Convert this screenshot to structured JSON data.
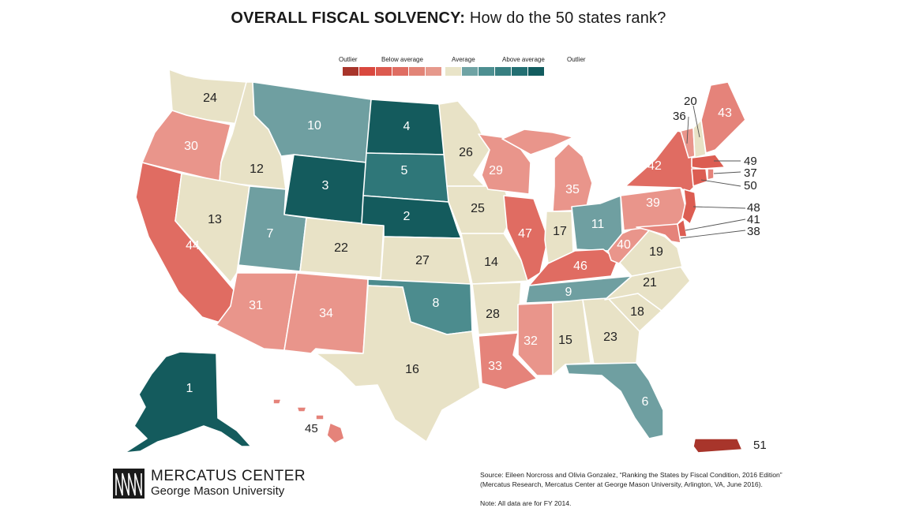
{
  "title": {
    "bold": "OVERALL FISCAL SOLVENCY:",
    "rest": "How do the 50 states rank?"
  },
  "legend": {
    "labels": [
      "Outlier",
      "Below average",
      "Average",
      "Above average",
      "Outlier"
    ],
    "colors": [
      "#a8352b",
      "#d9483f",
      "#dc5a4f",
      "#df6d62",
      "#e28477",
      "#e6998c",
      "#e9e4c8",
      "#6fa3a4",
      "#4d8f91",
      "#377f81",
      "#236f72",
      "#125c5f"
    ]
  },
  "colors": {
    "avg": "#e8e2c6",
    "below_1": "#e9958b",
    "below_2": "#e5837a",
    "below_3": "#e06c62",
    "below_4": "#dc5d52",
    "outlier_low": "#a8352b",
    "above_1": "#6f9fa1",
    "above_2": "#4c8c8e",
    "above_3": "#2f7779",
    "outlier_high": "#145b5d"
  },
  "ranks": {
    "WA": "24",
    "OR": "30",
    "CA": "44",
    "ID": "12",
    "NV": "13",
    "MT": "10",
    "WY": "3",
    "UT": "7",
    "AZ": "31",
    "CO": "22",
    "NM": "34",
    "ND": "4",
    "SD": "5",
    "NE": "2",
    "KS": "27",
    "OK": "8",
    "TX": "16",
    "MN": "26",
    "IA": "25",
    "MO": "14",
    "AR": "28",
    "LA": "33",
    "WI": "29",
    "IL": "47",
    "MI": "35",
    "IN": "17",
    "OH": "11",
    "KY": "46",
    "TN": "9",
    "MS": "32",
    "AL": "15",
    "GA": "23",
    "FL": "6",
    "SC": "18",
    "NC": "21",
    "VA": "19",
    "WV": "40",
    "PA": "39",
    "NY": "42",
    "ME": "43",
    "AK": "1",
    "HI": "45",
    "PR": "51",
    "VT": "36",
    "NH": "20",
    "MA": "49",
    "RI": "37",
    "CT": "50",
    "NJ": "48",
    "DE": "41",
    "MD": "38"
  },
  "logo": {
    "line1": "MERCATUS CENTER",
    "line2": "George Mason University"
  },
  "source": {
    "line1": "Source: Eileen Norcross and Olivia Gonzalez, “Ranking the States by Fiscal Condition, 2016 Edition”",
    "line2": "(Mercatus Research, Mercatus Center at George Mason University, Arlington, VA, June 2016).",
    "note": "Note: All data are for FY 2014."
  }
}
